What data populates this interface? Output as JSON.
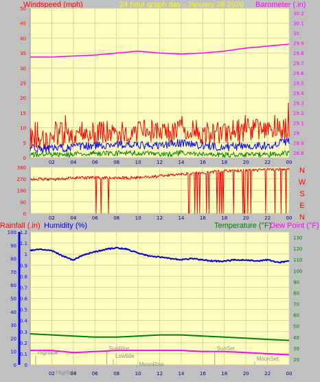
{
  "header": {
    "windspeed_label": "Windspeed (mph)",
    "title": "24 hour graph day - January 28 2020",
    "barometer_label": "Barometer (.in)"
  },
  "footer": {
    "rainfall_label": "Rainfall (.in)",
    "humidity_label": "Humidity (%)",
    "temperature_label": "Temperature (°F)",
    "dewpoint_label": "Dew Point (°F)"
  },
  "colors": {
    "background": "#c0c0c0",
    "plot_bg": "#ffffc0",
    "grid": "#d4d4a0",
    "wind_gust": "#ff0000",
    "wind_avg": "#0000ff",
    "wind_low": "#008000",
    "barometer": "#ff00ff",
    "direction": "#ff0000",
    "humidity": "#0000c8",
    "temperature": "#008000",
    "dewpoint": "#ff00ff",
    "header_red": "#ff0000",
    "header_yellow": "#ffff00",
    "header_magenta": "#ff00ff",
    "left_axis_blue": "#0000ff",
    "right_axis_green": "#008000"
  },
  "chart_data": [
    {
      "type": "line",
      "name": "wind-barometer",
      "x_tick_labels": [
        "02",
        "04",
        "06",
        "08",
        "10",
        "12",
        "14",
        "16",
        "18",
        "20",
        "22",
        "00"
      ],
      "y_left_ticks": [
        "0",
        "5",
        "10",
        "15",
        "20",
        "25",
        "30",
        "35",
        "40",
        "45",
        "50"
      ],
      "ylim_left": [
        0,
        50
      ],
      "y_right_ticks": [
        "28.8",
        "28.9",
        "29",
        "29.1",
        "29.2",
        "29.3",
        "29.4",
        "29.5",
        "29.6",
        "29.7",
        "29.8",
        "29.9",
        "30",
        "30.1",
        "30.2"
      ],
      "ylim_right": [
        28.75,
        30.25
      ],
      "series": [
        {
          "name": "Windspeed gust",
          "x": [
            0,
            1,
            2,
            3,
            4,
            5,
            6,
            7,
            8,
            9,
            10,
            11,
            12,
            13,
            14,
            15,
            16,
            17,
            18,
            19,
            20,
            21,
            22,
            23,
            24
          ],
          "values": [
            7,
            6,
            7,
            8,
            8,
            9,
            8,
            9,
            8,
            8,
            8,
            9,
            8,
            8,
            10,
            9,
            8,
            8,
            8,
            9,
            9,
            10,
            8,
            9,
            10
          ]
        },
        {
          "name": "Windspeed average",
          "x": [
            0,
            2,
            4,
            6,
            8,
            10,
            12,
            14,
            16,
            18,
            20,
            22,
            24
          ],
          "values": [
            3,
            3,
            3.5,
            4,
            4.5,
            4,
            4,
            5,
            4,
            3.5,
            4,
            4,
            5.5
          ]
        },
        {
          "name": "Windspeed low",
          "x": [
            0,
            2,
            4,
            6,
            8,
            10,
            12,
            14,
            16,
            18,
            20,
            22,
            24
          ],
          "values": [
            1,
            1,
            1,
            1.5,
            1.5,
            1.5,
            1,
            1.5,
            1,
            1,
            1,
            1,
            1.5
          ]
        },
        {
          "name": "Barometer",
          "x": [
            0,
            2,
            4,
            6,
            8,
            10,
            12,
            14,
            16,
            18,
            20,
            22,
            24
          ],
          "values": [
            29.76,
            29.76,
            29.77,
            29.78,
            29.8,
            29.82,
            29.8,
            29.79,
            29.8,
            29.82,
            29.85,
            29.87,
            29.89
          ]
        }
      ]
    },
    {
      "type": "line",
      "name": "wind-direction",
      "x_tick_labels": [
        "02",
        "04",
        "06",
        "08",
        "10",
        "12",
        "14",
        "16",
        "18",
        "20",
        "22",
        "00"
      ],
      "y_left_ticks": [
        "0",
        "90",
        "180",
        "270",
        "360"
      ],
      "ylim": [
        0,
        360
      ],
      "y_right_labels": [
        "N",
        "W",
        "S",
        "E",
        "N"
      ],
      "series": [
        {
          "name": "Wind direction",
          "x": [
            0,
            2,
            4,
            6,
            8,
            10,
            12,
            14,
            16,
            18,
            20,
            22,
            24
          ],
          "values": [
            270,
            265,
            275,
            280,
            275,
            280,
            290,
            305,
            320,
            330,
            335,
            340,
            345
          ]
        }
      ]
    },
    {
      "type": "line",
      "name": "humidity-temperature",
      "x_tick_labels": [
        "02",
        "04",
        "06",
        "08",
        "10",
        "12",
        "14",
        "16",
        "18",
        "20",
        "22",
        "00"
      ],
      "y_left_rain_ticks": [
        "0",
        "0.1",
        "0.2",
        "0.3",
        "0.4",
        "0.5",
        "0.6",
        "0.7",
        "0.8",
        "0.9",
        "1",
        "1.1",
        "1.2"
      ],
      "ylim_rain": [
        0,
        1.2
      ],
      "y_left_humidity_ticks": [
        "0",
        "10",
        "20",
        "30",
        "40",
        "50",
        "60",
        "70",
        "80",
        "90",
        "100"
      ],
      "ylim_humidity": [
        0,
        100
      ],
      "y_right_ticks": [
        "20",
        "30",
        "40",
        "50",
        "60",
        "70",
        "80",
        "90",
        "100",
        "110",
        "120",
        "130"
      ],
      "ylim_temperature": [
        15,
        135
      ],
      "series": [
        {
          "name": "Humidity",
          "x": [
            0,
            1,
            2,
            3,
            4,
            5,
            6,
            7,
            8,
            9,
            10,
            11,
            12,
            13,
            14,
            15,
            16,
            17,
            18,
            19,
            20,
            21,
            22,
            23,
            24
          ],
          "values": [
            86,
            87,
            86,
            82,
            79,
            83,
            85,
            87,
            88,
            87,
            84,
            82,
            81,
            80,
            79,
            80,
            79,
            78,
            78,
            79,
            79,
            78,
            79,
            77,
            78
          ]
        },
        {
          "name": "Temperature",
          "x": [
            0,
            2,
            4,
            6,
            8,
            10,
            12,
            14,
            16,
            18,
            20,
            22,
            24
          ],
          "values": [
            43,
            42,
            41,
            40,
            40,
            41,
            42,
            42,
            41,
            40,
            39,
            38,
            37
          ]
        },
        {
          "name": "Dew Point",
          "x": [
            0,
            2,
            4,
            6,
            8,
            10,
            12,
            14,
            16,
            18,
            20,
            22,
            24
          ],
          "values": [
            28,
            28,
            26,
            27,
            28,
            28,
            28,
            28,
            27,
            27,
            26,
            25,
            24
          ]
        }
      ],
      "annotations": [
        {
          "text": "Hightide",
          "x": 0.5
        },
        {
          "text": "SunRise",
          "x": 7.1
        },
        {
          "text": "Lowtide",
          "x": 7.7
        },
        {
          "text": "MoonRise",
          "x": 9.9
        },
        {
          "text": "SunSet",
          "x": 17.1
        },
        {
          "text": "MoonSet",
          "x": 20.8
        },
        {
          "text": "Hightide",
          "x": 1.0
        }
      ]
    }
  ]
}
